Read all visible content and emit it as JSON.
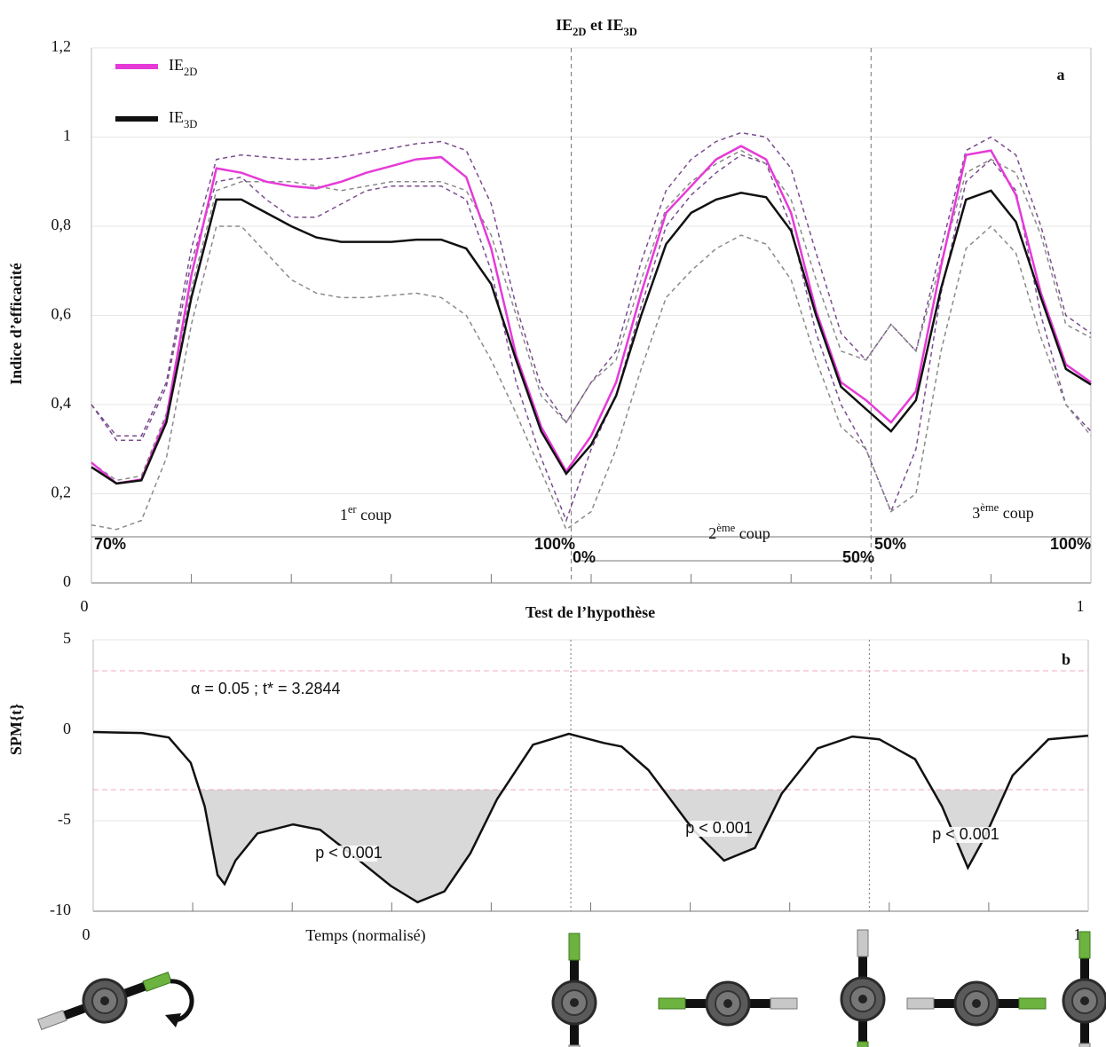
{
  "chart_data": [
    {
      "type": "line",
      "title_parts": [
        {
          "text": "IE"
        },
        {
          "text": "2D",
          "sub": true
        },
        {
          "text": " et IE"
        },
        {
          "text": "3D",
          "sub": true
        }
      ],
      "ylabel": "Indice d’efficacité",
      "panel_label": "a",
      "xlim": [
        0,
        1
      ],
      "xticks": [
        0,
        1
      ],
      "minor_xticks": [
        0.1,
        0.2,
        0.3,
        0.4,
        0.5,
        0.6,
        0.7,
        0.8,
        0.9
      ],
      "ylim": [
        0,
        1.2
      ],
      "yticks": [
        0,
        {
          "value": 0.2,
          "label": "0,2"
        },
        {
          "value": 0.4,
          "label": "0,4"
        },
        {
          "value": 0.6,
          "label": "0,6"
        },
        {
          "value": 0.8,
          "label": "0,8"
        },
        1,
        {
          "value": 1.2,
          "label": "1,2"
        }
      ],
      "grid": true,
      "legend": "upper left",
      "x": [
        0,
        0.025,
        0.05,
        0.075,
        0.1,
        0.125,
        0.15,
        0.175,
        0.2,
        0.225,
        0.25,
        0.275,
        0.3,
        0.325,
        0.35,
        0.375,
        0.4,
        0.425,
        0.45,
        0.475,
        0.5,
        0.525,
        0.55,
        0.575,
        0.6,
        0.625,
        0.65,
        0.675,
        0.7,
        0.725,
        0.75,
        0.775,
        0.8,
        0.825,
        0.85,
        0.875,
        0.9,
        0.925,
        0.95,
        0.975,
        1
      ],
      "series": [
        {
          "name": "IE",
          "subscript": "2D",
          "color": "#e63ad8",
          "values": [
            0.27,
            0.223,
            0.232,
            0.37,
            0.69,
            0.93,
            0.92,
            0.9,
            0.89,
            0.885,
            0.9,
            0.92,
            0.935,
            0.95,
            0.955,
            0.91,
            0.75,
            0.51,
            0.35,
            0.25,
            0.33,
            0.45,
            0.65,
            0.83,
            0.89,
            0.95,
            0.98,
            0.95,
            0.83,
            0.61,
            0.45,
            0.41,
            0.36,
            0.43,
            0.71,
            0.96,
            0.97,
            0.87,
            0.65,
            0.49,
            0.45
          ]
        },
        {
          "name": "IE",
          "subscript": "3D",
          "color": "#111111",
          "values": [
            0.26,
            0.223,
            0.23,
            0.36,
            0.64,
            0.86,
            0.86,
            0.83,
            0.8,
            0.775,
            0.765,
            0.765,
            0.765,
            0.77,
            0.77,
            0.75,
            0.67,
            0.5,
            0.34,
            0.245,
            0.31,
            0.42,
            0.6,
            0.76,
            0.83,
            0.86,
            0.875,
            0.865,
            0.79,
            0.6,
            0.44,
            0.39,
            0.34,
            0.41,
            0.66,
            0.86,
            0.88,
            0.81,
            0.64,
            0.48,
            0.445
          ]
        }
      ],
      "bands": [
        {
          "color": "#7a4e8e",
          "upper": [
            0.4,
            0.33,
            0.33,
            0.45,
            0.75,
            0.95,
            0.96,
            0.955,
            0.95,
            0.95,
            0.955,
            0.965,
            0.975,
            0.985,
            0.99,
            0.97,
            0.85,
            0.62,
            0.44,
            0.36,
            0.45,
            0.52,
            0.72,
            0.88,
            0.95,
            0.99,
            1.01,
            1.0,
            0.93,
            0.74,
            0.56,
            0.5,
            0.58,
            0.52,
            0.75,
            0.97,
            1.0,
            0.96,
            0.8,
            0.6,
            0.56
          ],
          "lower": [
            0.4,
            0.32,
            0.32,
            0.44,
            0.72,
            0.9,
            0.91,
            0.86,
            0.82,
            0.82,
            0.85,
            0.88,
            0.89,
            0.89,
            0.89,
            0.86,
            0.7,
            0.45,
            0.28,
            0.14,
            0.3,
            0.42,
            0.62,
            0.8,
            0.87,
            0.92,
            0.96,
            0.94,
            0.8,
            0.56,
            0.4,
            0.3,
            0.16,
            0.3,
            0.65,
            0.9,
            0.95,
            0.88,
            0.6,
            0.4,
            0.34
          ]
        },
        {
          "color": "#8a8a8a",
          "upper": [
            0.27,
            0.23,
            0.24,
            0.38,
            0.66,
            0.88,
            0.9,
            0.9,
            0.9,
            0.89,
            0.88,
            0.89,
            0.9,
            0.9,
            0.9,
            0.88,
            0.78,
            0.6,
            0.42,
            0.36,
            0.45,
            0.5,
            0.68,
            0.84,
            0.9,
            0.94,
            0.97,
            0.94,
            0.86,
            0.68,
            0.52,
            0.5,
            0.58,
            0.52,
            0.72,
            0.92,
            0.95,
            0.92,
            0.78,
            0.58,
            0.55
          ],
          "lower": [
            0.13,
            0.12,
            0.14,
            0.28,
            0.58,
            0.8,
            0.8,
            0.74,
            0.68,
            0.65,
            0.64,
            0.64,
            0.645,
            0.65,
            0.64,
            0.6,
            0.5,
            0.38,
            0.25,
            0.12,
            0.16,
            0.3,
            0.48,
            0.64,
            0.7,
            0.75,
            0.78,
            0.76,
            0.68,
            0.5,
            0.35,
            0.3,
            0.16,
            0.2,
            0.52,
            0.75,
            0.8,
            0.74,
            0.55,
            0.4,
            0.33
          ]
        }
      ],
      "vlines": [
        0.48,
        0.78
      ],
      "stroke_labels": [
        [
          {
            "text": "1"
          },
          {
            "text": "er",
            "sup": true
          },
          {
            "text": " coup"
          }
        ],
        [
          {
            "text": "2"
          },
          {
            "text": "ème",
            "sup": true
          },
          {
            "text": " coup"
          }
        ],
        [
          {
            "text": "3"
          },
          {
            "text": "ème",
            "sup": true
          },
          {
            "text": " coup"
          }
        ]
      ],
      "phase_labels": [
        "70%",
        "100%",
        "0%",
        "50%",
        "50%",
        "100%"
      ]
    },
    {
      "type": "line",
      "title": "Test de l’hypothèse",
      "ylabel": "SPM{t}",
      "xlabel": "Temps (normalisé)",
      "panel_label": "b",
      "xlim": [
        0,
        1
      ],
      "xticks": [
        0,
        1
      ],
      "minor_xticks": [
        0.1,
        0.2,
        0.3,
        0.4,
        0.5,
        0.6,
        0.7,
        0.8,
        0.9
      ],
      "ylim": [
        -10,
        5
      ],
      "yticks": [
        -10,
        -5,
        0,
        5
      ],
      "grid": true,
      "x": [
        0,
        0.049,
        0.076,
        0.098,
        0.112,
        0.125,
        0.132,
        0.143,
        0.165,
        0.201,
        0.228,
        0.263,
        0.299,
        0.326,
        0.353,
        0.379,
        0.406,
        0.442,
        0.478,
        0.513,
        0.531,
        0.558,
        0.603,
        0.634,
        0.665,
        0.692,
        0.728,
        0.763,
        0.79,
        0.826,
        0.853,
        0.879,
        0.897,
        0.924,
        0.96,
        1
      ],
      "series": [
        {
          "color": "#111111",
          "values": [
            -0.1,
            -0.15,
            -0.4,
            -1.8,
            -4.2,
            -8,
            -8.5,
            -7.2,
            -5.7,
            -5.2,
            -5.5,
            -7,
            -8.6,
            -9.5,
            -8.9,
            -6.8,
            -3.8,
            -0.8,
            -0.2,
            -0.7,
            -0.9,
            -2.2,
            -5.5,
            -7.2,
            -6.5,
            -3.5,
            -1,
            -0.35,
            -0.5,
            -1.6,
            -4.2,
            -7.6,
            -5.8,
            -2.5,
            -0.5,
            -0.3
          ]
        }
      ],
      "threshold": 3.2844,
      "threshold_color": "#f2a9bd",
      "fill_color": "#d9d9d9",
      "alpha_label": "α = 0.05 ; t* = 3.2844",
      "alpha_color": "#e0202a",
      "p_labels": [
        "p < 0.001",
        "p < 0.001",
        "p < 0.001"
      ],
      "vlines": [
        0.48,
        0.78
      ]
    }
  ]
}
